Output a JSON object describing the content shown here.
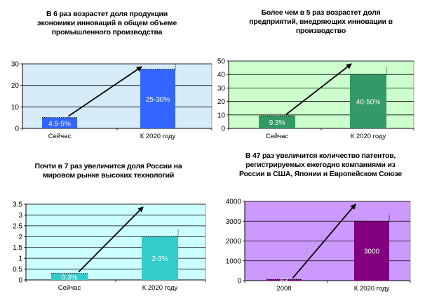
{
  "chart_data": [
    {
      "type": "bar",
      "title": "В 6 раз возрастет доля продукции экономики инноваций в общем объеме промышленного производства",
      "categories": [
        "Сейчас",
        "К 2020 году"
      ],
      "values": [
        5,
        27.5
      ],
      "data_labels": [
        "4.5-5%",
        "25-30%"
      ],
      "ylim": [
        0,
        30
      ],
      "yticks": [
        0,
        10,
        20,
        30
      ],
      "grid": true,
      "bar_color": "#3366ff",
      "plot_bg": "#d6ecf8"
    },
    {
      "type": "bar",
      "title": "Более чем в 5 раз возрастет доля предприятий, внедряющих инновации в производство",
      "categories": [
        "Сейчас",
        "К 2020 году"
      ],
      "values": [
        9.3,
        40
      ],
      "data_labels": [
        "9.3%",
        "40-50%"
      ],
      "ylim": [
        0,
        50
      ],
      "yticks": [
        0,
        10,
        20,
        30,
        40,
        50
      ],
      "grid": true,
      "bar_color": "#339966",
      "plot_bg": "#ccffcc"
    },
    {
      "type": "bar",
      "title": "Почти в 7 раз увеличится доля России на мировом рынке высоких технологий",
      "categories": [
        "Сейчас",
        "К 2020 году"
      ],
      "values": [
        0.3,
        2
      ],
      "data_labels": [
        "0.3%",
        "2-3%"
      ],
      "ylim": [
        0,
        3.5
      ],
      "yticks": [
        0,
        0.5,
        1,
        1.5,
        2,
        2.5,
        3,
        3.5
      ],
      "grid": true,
      "bar_color": "#33cccc",
      "plot_bg": "#ccffff"
    },
    {
      "type": "bar",
      "title": "В 47 раз увеличится количество патентов, регистрируемых ежегодно компаниями из России в США, Японии и Европейском Союзе",
      "categories": [
        "2008",
        "К 2020 году"
      ],
      "values": [
        63,
        3000
      ],
      "data_labels": [
        "63",
        "3000"
      ],
      "ylim": [
        0,
        4000
      ],
      "yticks": [
        0,
        1000,
        2000,
        3000,
        4000
      ],
      "grid": true,
      "bar_color": "#800080",
      "plot_bg": "#cc99ff"
    }
  ]
}
